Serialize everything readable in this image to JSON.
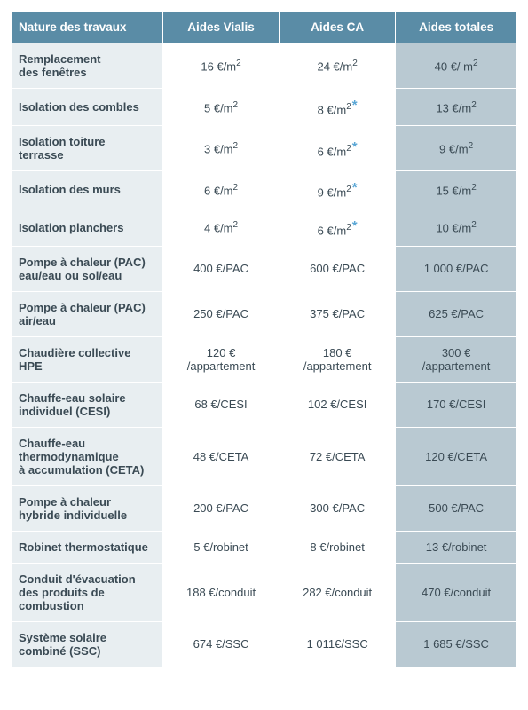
{
  "table": {
    "header_bg": "#5a8ca6",
    "header_fg": "#ffffff",
    "label_bg": "#e8eef1",
    "val_bg": "#ffffff",
    "total_bg": "#b9c9d2",
    "border_color": "#ffffff",
    "star_color": "#5aa7d6",
    "font_family": "Arial, Helvetica, sans-serif",
    "font_size_header": 13.5,
    "font_size_cell": 13,
    "col_widths_pct": [
      30,
      23,
      23,
      24
    ],
    "columns": [
      "Nature des travaux",
      "Aides Vialis",
      "Aides CA",
      "Aides totales"
    ],
    "rows": [
      {
        "label": "Remplacement\ndes fenêtres",
        "vialis": "16 €/m²",
        "ca": "24 €/m²",
        "ca_star": false,
        "total": "40 €/ m²"
      },
      {
        "label": "Isolation des combles",
        "vialis": "5 €/m²",
        "ca": "8 €/m²",
        "ca_star": true,
        "total": "13 €/m²"
      },
      {
        "label": "Isolation toiture\nterrasse",
        "vialis": "3 €/m²",
        "ca": "6 €/m²",
        "ca_star": true,
        "total": "9 €/m²"
      },
      {
        "label": "Isolation des murs",
        "vialis": "6 €/m²",
        "ca": "9 €/m²",
        "ca_star": true,
        "total": "15 €/m²"
      },
      {
        "label": "Isolation planchers",
        "vialis": "4 €/m²",
        "ca": "6 €/m²",
        "ca_star": true,
        "total": "10 €/m²"
      },
      {
        "label": "Pompe à chaleur (PAC)\neau/eau ou sol/eau",
        "vialis": "400 €/PAC",
        "ca": "600 €/PAC",
        "ca_star": false,
        "total": "1 000 €/PAC"
      },
      {
        "label": "Pompe à chaleur (PAC)\nair/eau",
        "vialis": "250 €/PAC",
        "ca": "375 €/PAC",
        "ca_star": false,
        "total": "625 €/PAC"
      },
      {
        "label": "Chaudière collective\nHPE",
        "vialis": "120 €\n/appartement",
        "ca": "180 €\n/appartement",
        "ca_star": false,
        "total": "300 €\n/appartement"
      },
      {
        "label": "Chauffe-eau solaire\nindividuel (CESI)",
        "vialis": "68 €/CESI",
        "ca": "102 €/CESI",
        "ca_star": false,
        "total": "170 €/CESI"
      },
      {
        "label": "Chauffe-eau\nthermodynamique\nà accumulation (CETA)",
        "vialis": "48 €/CETA",
        "ca": "72 €/CETA",
        "ca_star": false,
        "total": "120 €/CETA"
      },
      {
        "label": "Pompe à chaleur\nhybride individuelle",
        "vialis": "200 €/PAC",
        "ca": "300 €/PAC",
        "ca_star": false,
        "total": "500 €/PAC"
      },
      {
        "label": "Robinet thermostatique",
        "vialis": "5 €/robinet",
        "ca": "8 €/robinet",
        "ca_star": false,
        "total": "13 €/robinet"
      },
      {
        "label": "Conduit d'évacuation\ndes produits de\ncombustion",
        "vialis": "188 €/conduit",
        "ca": "282 €/conduit",
        "ca_star": false,
        "total": "470 €/conduit"
      },
      {
        "label": "Système solaire\ncombiné (SSC)",
        "vialis": "674 €/SSC",
        "ca": "1 011€/SSC",
        "ca_star": false,
        "total": "1 685 €/SSC"
      }
    ]
  }
}
